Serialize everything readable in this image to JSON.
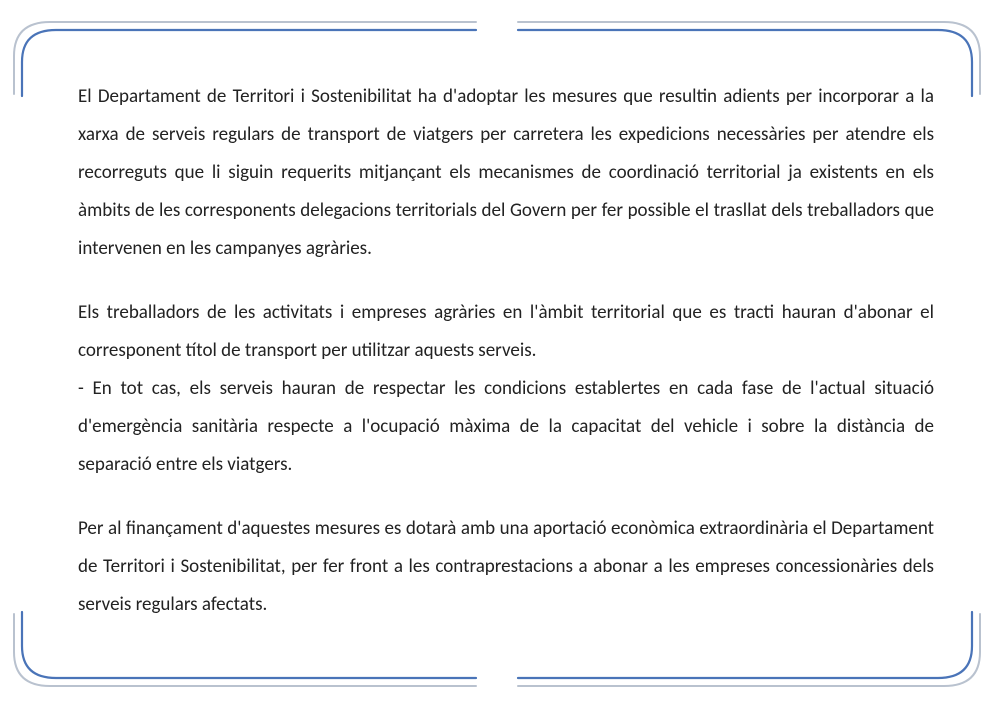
{
  "document": {
    "paragraphs": [
      "El Departament de Territori i Sostenibilitat ha d'adoptar les mesures que resultin adients per incorporar a la xarxa de serveis regulars de transport de viatgers per carretera les expedicions necessàries per atendre els recorreguts que li siguin requerits mitjançant els mecanismes de coordinació territorial ja existents en els àmbits de les corresponents delegacions territorials del Govern per fer possible el trasllat dels treballadors que intervenen en les campanyes agràries.",
      "Els treballadors de les activitats i empreses agràries en l'àmbit territorial que es tracti hauran d'abonar el corresponent títol de transport per utilitzar aquests serveis.\n- En tot cas, els serveis hauran de respectar les condicions establertes en cada fase de l'actual situació d'emergència sanitària respecte a l'ocupació màxima de la capacitat del vehicle i sobre la distància de separació entre els viatgers.",
      "Per al finançament d'aquestes mesures es dotarà amb una aportació econòmica extraordinària el Departament de Territori i Sostenibilitat, per fer front a les contraprestacions a abonar a les empreses concessionàries dels serveis regulars afectats."
    ],
    "style": {
      "font_family": "Calibri",
      "font_size_pt": 14,
      "line_height": 2.0,
      "text_color": "#222222",
      "text_align": "justify",
      "background_color": "#ffffff"
    }
  },
  "frame": {
    "corner_inner_color": "#4a74b8",
    "corner_outer_color": "#b9c2cf",
    "corner_stroke_inner": 2.2,
    "corner_stroke_outer": 2.0,
    "corner_radius": 34,
    "corner_arm_length": 440
  }
}
